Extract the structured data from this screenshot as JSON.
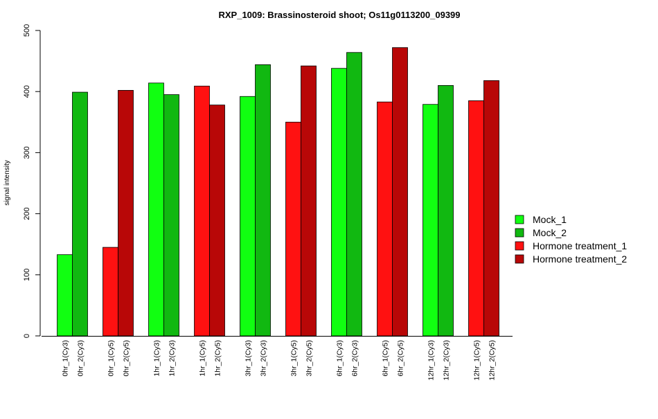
{
  "chart_data": {
    "type": "bar",
    "title": "RXP_1009: Brassinosteroid shoot; Os11g0113200_09399",
    "xlabel": "",
    "ylabel": "signal intensity",
    "ylim": [
      0,
      500
    ],
    "yticks": [
      0,
      100,
      200,
      300,
      400,
      500
    ],
    "grid": false,
    "legend_position": "right",
    "bars": [
      {
        "label": "0hr_1(Cy3)",
        "value": 133,
        "series": 0
      },
      {
        "label": "0hr_2(Cy3)",
        "value": 399,
        "series": 1
      },
      {
        "label": "0hr_1(Cy5)",
        "value": 145,
        "series": 2
      },
      {
        "label": "0hr_2(Cy5)",
        "value": 402,
        "series": 3
      },
      {
        "label": "1hr_1(Cy3)",
        "value": 414,
        "series": 0
      },
      {
        "label": "1hr_2(Cy3)",
        "value": 395,
        "series": 1
      },
      {
        "label": "1hr_1(Cy5)",
        "value": 409,
        "series": 2
      },
      {
        "label": "1hr_2(Cy5)",
        "value": 378,
        "series": 3
      },
      {
        "label": "3hr_1(Cy3)",
        "value": 392,
        "series": 0
      },
      {
        "label": "3hr_2(Cy3)",
        "value": 444,
        "series": 1
      },
      {
        "label": "3hr_1(Cy5)",
        "value": 350,
        "series": 2
      },
      {
        "label": "3hr_2(Cy5)",
        "value": 442,
        "series": 3
      },
      {
        "label": "6hr_1(Cy3)",
        "value": 438,
        "series": 0
      },
      {
        "label": "6hr_2(Cy3)",
        "value": 464,
        "series": 1
      },
      {
        "label": "6hr_1(Cy5)",
        "value": 383,
        "series": 2
      },
      {
        "label": "6hr_2(Cy5)",
        "value": 472,
        "series": 3
      },
      {
        "label": "12hr_1(Cy3)",
        "value": 379,
        "series": 0
      },
      {
        "label": "12hr_2(Cy3)",
        "value": 410,
        "series": 1
      },
      {
        "label": "12hr_1(Cy5)",
        "value": 385,
        "series": 2
      },
      {
        "label": "12hr_2(Cy5)",
        "value": 418,
        "series": 3
      }
    ],
    "series": [
      {
        "name": "Mock_1",
        "color": "#11ff11"
      },
      {
        "name": "Mock_2",
        "color": "#11b811"
      },
      {
        "name": "Hormone treatment_1",
        "color": "#ff1111"
      },
      {
        "name": "Hormone treatment_2",
        "color": "#b80707"
      }
    ]
  }
}
